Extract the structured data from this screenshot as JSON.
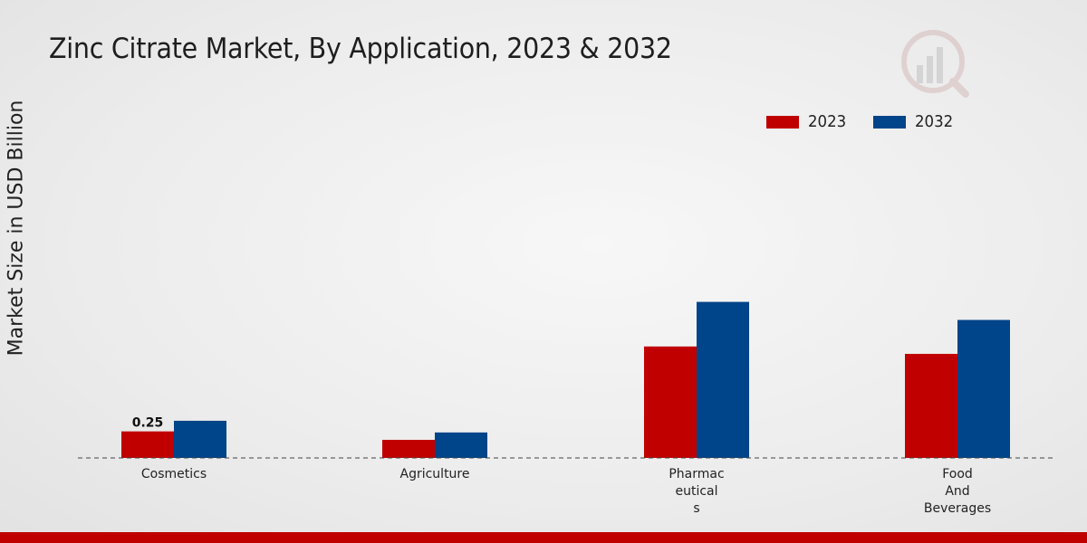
{
  "chart_data": {
    "type": "bar",
    "title": "Zinc Citrate Market, By Application, 2023 & 2032",
    "ylabel": "Market Size in USD Billion",
    "xlabel": "",
    "categories": [
      "Cosmetics",
      "Agriculture",
      "Pharmac\neutical\ns",
      "Food\nAnd\nBeverages"
    ],
    "series": [
      {
        "name": "2023",
        "color": "#c00000",
        "values": [
          0.25,
          0.17,
          1.05,
          0.98
        ]
      },
      {
        "name": "2032",
        "color": "#004489",
        "values": [
          0.35,
          0.24,
          1.47,
          1.3
        ]
      }
    ],
    "data_labels": [
      {
        "series": 0,
        "index": 0,
        "text": "0.25"
      }
    ],
    "ylim": [
      0,
      3.7
    ],
    "legend": "top-right",
    "grid": false
  },
  "colors": {
    "accent_red": "#c00000",
    "accent_blue": "#004489",
    "footer": "#c00000"
  },
  "logo": {
    "icon": "brand-chart-icon"
  }
}
